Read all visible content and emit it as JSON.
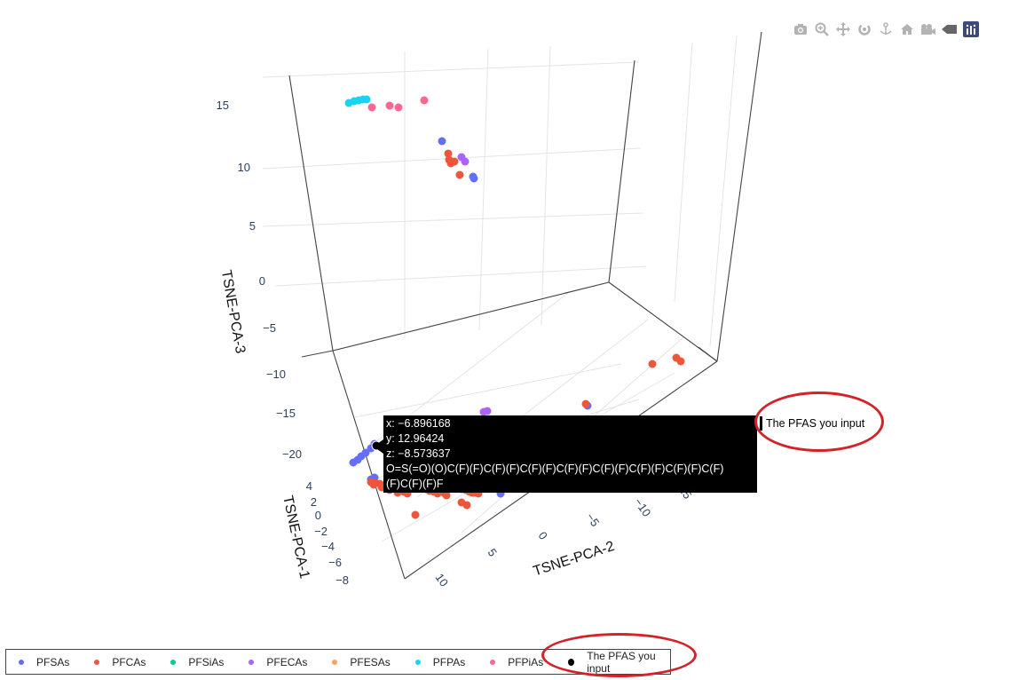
{
  "toolbar": {
    "buttons": [
      {
        "name": "camera-icon",
        "title": "Download plot as a png"
      },
      {
        "name": "zoom-icon",
        "title": "Zoom"
      },
      {
        "name": "pan-icon",
        "title": "Pan"
      },
      {
        "name": "orbit-rotation-icon",
        "title": "Orbital rotation"
      },
      {
        "name": "turntable-icon",
        "title": "Turntable rotation"
      },
      {
        "name": "home-icon",
        "title": "Reset camera to default"
      },
      {
        "name": "video-camera-icon",
        "title": "Reset camera to last save"
      },
      {
        "name": "spike-lines-icon",
        "title": "Toggle show closest data on hover"
      },
      {
        "name": "plotly-logo-icon",
        "title": "Produced with Plotly"
      }
    ]
  },
  "chart_data": {
    "type": "scatter3d",
    "title": "",
    "axes": {
      "x": {
        "label": "TSNE-PCA-1",
        "ticks": [
          4,
          2,
          0,
          -2,
          -4,
          -6,
          -8
        ]
      },
      "y": {
        "label": "TSNE-PCA-2",
        "ticks": [
          10,
          5,
          0,
          -5,
          -10,
          -15
        ]
      },
      "z": {
        "label": "TSNE-PCA-3",
        "ticks": [
          15,
          10,
          5,
          0,
          -5,
          -10,
          -15,
          -20
        ]
      }
    },
    "grid": true,
    "legend_position": "bottom",
    "series": [
      {
        "name": "PFSAs",
        "color": "#636efa"
      },
      {
        "name": "PFCAs",
        "color": "#ef553b"
      },
      {
        "name": "PFSiAs",
        "color": "#00cc96"
      },
      {
        "name": "PFECAs",
        "color": "#ab63fa"
      },
      {
        "name": "PFESAs",
        "color": "#ffa15a"
      },
      {
        "name": "PFPAs",
        "color": "#19d3f3"
      },
      {
        "name": "PFPiAs",
        "color": "#ff6692"
      },
      {
        "name": "The PFAS you input",
        "color": "#000000"
      }
    ],
    "hover": {
      "x": "x: −6.896168",
      "y": "y: 12.96424",
      "z": "z: −8.573637",
      "smiles": "O=S(=O)(O)C(F)(F)C(F)(F)C(F)(F)C(F)(F)C(F)(F)C(F)(F)C(F)(F)C(F)(F)C(F)(F)F",
      "trace_label": "The PFAS you input"
    },
    "annotation_color": "#d2232a"
  }
}
